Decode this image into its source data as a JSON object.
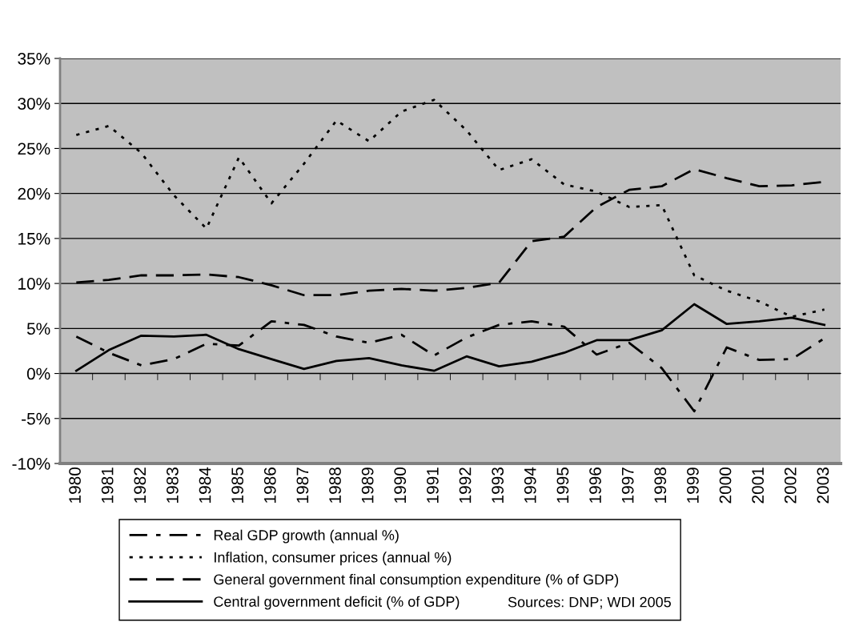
{
  "chart_data": {
    "type": "line",
    "categories": [
      "1980",
      "1981",
      "1982",
      "1983",
      "1984",
      "1985",
      "1986",
      "1987",
      "1988",
      "1989",
      "1990",
      "1991",
      "1992",
      "1993",
      "1994",
      "1995",
      "1996",
      "1997",
      "1998",
      "1999",
      "2000",
      "2001",
      "2002",
      "2003"
    ],
    "series": [
      {
        "name": "Real GDP growth (annual %)",
        "color": "#000000",
        "line_style": "dashdot",
        "values": [
          4.1,
          2.3,
          0.9,
          1.6,
          3.3,
          3.1,
          5.8,
          5.4,
          4.1,
          3.4,
          4.3,
          2.0,
          4.0,
          5.4,
          5.8,
          5.2,
          2.1,
          3.4,
          0.6,
          -4.2,
          2.9,
          1.5,
          1.6,
          3.9
        ]
      },
      {
        "name": "Inflation, consumer prices (annual %)",
        "color": "#000000",
        "line_style": "dotted",
        "values": [
          26.5,
          27.5,
          24.5,
          19.8,
          16.1,
          24.0,
          18.9,
          23.3,
          28.1,
          25.8,
          29.1,
          30.4,
          27.0,
          22.6,
          23.8,
          21.0,
          20.2,
          18.5,
          18.7,
          10.9,
          9.2,
          8.0,
          6.3,
          7.1
        ]
      },
      {
        "name": "General government final consumption expenditure (% of GDP)",
        "color": "#000000",
        "line_style": "dashed",
        "values": [
          10.1,
          10.4,
          10.9,
          10.9,
          11.0,
          10.7,
          9.8,
          8.7,
          8.7,
          9.2,
          9.4,
          9.2,
          9.5,
          10.1,
          14.7,
          15.2,
          18.5,
          20.4,
          20.8,
          22.7,
          21.7,
          20.8,
          20.9,
          21.3
        ]
      },
      {
        "name": "Central government deficit (% of GDP)",
        "color": "#000000",
        "line_style": "solid",
        "values": [
          0.3,
          2.6,
          4.2,
          4.1,
          4.3,
          2.7,
          1.6,
          0.5,
          1.4,
          1.7,
          0.9,
          0.3,
          1.9,
          0.8,
          1.3,
          2.3,
          3.7,
          3.7,
          4.8,
          7.7,
          5.5,
          5.8,
          6.2,
          5.4
        ]
      }
    ],
    "ylim": [
      -10,
      35
    ],
    "yticks": [
      {
        "value": -10,
        "label": "-10%"
      },
      {
        "value": -5,
        "label": "-5%"
      },
      {
        "value": 0,
        "label": "0%"
      },
      {
        "value": 5,
        "label": "5%"
      },
      {
        "value": 10,
        "label": "10%"
      },
      {
        "value": 15,
        "label": "15%"
      },
      {
        "value": 20,
        "label": "20%"
      },
      {
        "value": 25,
        "label": "25%"
      },
      {
        "value": 30,
        "label": "30%"
      },
      {
        "value": 35,
        "label": "35%"
      }
    ],
    "grid": "y",
    "legend": "bottom",
    "marker": "none",
    "annotations": [
      "Sources: DNP; WDI 2005"
    ]
  }
}
